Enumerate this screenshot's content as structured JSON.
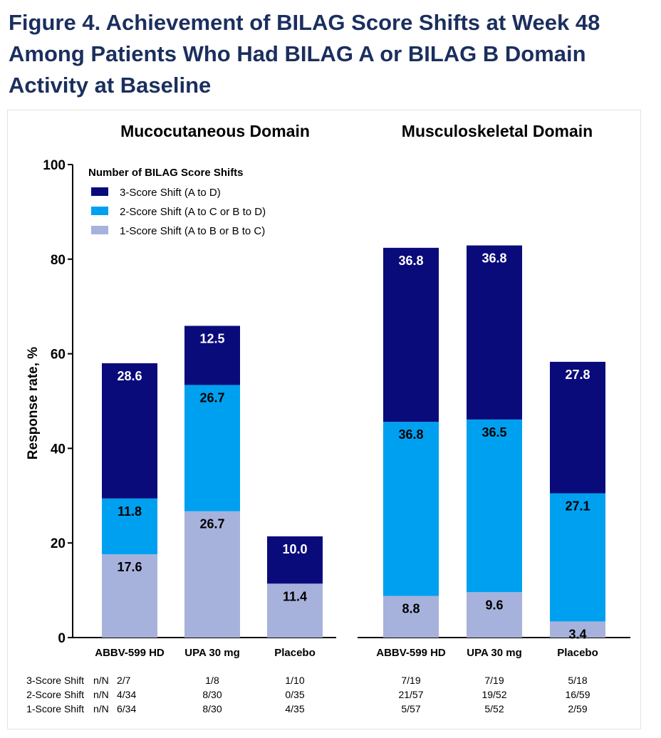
{
  "figure": {
    "title": "Figure 4. Achievement of BILAG Score Shifts at Week 48 Among Patients Who Had BILAG A or BILAG B Domain Activity at Baseline"
  },
  "colors": {
    "three_shift": "#0a0b7a",
    "two_shift": "#00a0f0",
    "one_shift": "#a7b2dc",
    "title": "#1b2f5e",
    "axis": "#000000"
  },
  "chart_data": {
    "type": "bar",
    "stacked": true,
    "ylabel": "Response rate, %",
    "ylim": [
      0,
      100
    ],
    "yticks": [
      0,
      20,
      40,
      60,
      80,
      100
    ],
    "legend": {
      "title": "Number of BILAG Score Shifts",
      "placement": "top-left",
      "entries": [
        {
          "key": "three_shift",
          "label": "3-Score Shift (A to D)"
        },
        {
          "key": "two_shift",
          "label": "2-Score Shift (A to C or B to D)"
        },
        {
          "key": "one_shift",
          "label": "1-Score Shift (A to B or B to C)"
        }
      ]
    },
    "panels": [
      {
        "title": "Mucocutaneous Domain",
        "categories": [
          "ABBV-599 HD",
          "UPA 30 mg",
          "Placebo"
        ],
        "series": [
          {
            "key": "one_shift",
            "name": "1-Score Shift",
            "values": [
              17.6,
              26.7,
              11.4
            ],
            "labels": [
              "17.6",
              "26.7",
              "11.4"
            ]
          },
          {
            "key": "two_shift",
            "name": "2-Score Shift",
            "values": [
              11.8,
              26.7,
              0
            ],
            "labels": [
              "11.8",
              "26.7",
              ""
            ]
          },
          {
            "key": "three_shift",
            "name": "3-Score Shift",
            "values": [
              28.6,
              12.5,
              10.0
            ],
            "labels": [
              "28.6",
              "12.5",
              "10.0"
            ]
          }
        ]
      },
      {
        "title": "Musculoskeletal Domain",
        "categories": [
          "ABBV-599 HD",
          "UPA 30 mg",
          "Placebo"
        ],
        "series": [
          {
            "key": "one_shift",
            "name": "1-Score Shift",
            "values": [
              8.8,
              9.6,
              3.4
            ],
            "labels": [
              "8.8",
              "9.6",
              "3.4"
            ]
          },
          {
            "key": "two_shift",
            "name": "2-Score Shift",
            "values": [
              36.8,
              36.5,
              27.1
            ],
            "labels": [
              "36.8",
              "36.5",
              "27.1"
            ]
          },
          {
            "key": "three_shift",
            "name": "3-Score Shift",
            "values": [
              36.8,
              36.8,
              27.8
            ],
            "labels": [
              "36.8",
              "36.8",
              "27.8"
            ]
          }
        ]
      }
    ],
    "nN_table": {
      "rows": [
        {
          "label": "3-Score Shift",
          "unit": "n/N",
          "values": [
            "2/7",
            "1/8",
            "1/10",
            "7/19",
            "7/19",
            "5/18"
          ]
        },
        {
          "label": "2-Score Shift",
          "unit": "n/N",
          "values": [
            "4/34",
            "8/30",
            "0/35",
            "21/57",
            "19/52",
            "16/59"
          ]
        },
        {
          "label": "1-Score Shift",
          "unit": "n/N",
          "values": [
            "6/34",
            "8/30",
            "4/35",
            "5/57",
            "5/52",
            "2/59"
          ]
        }
      ]
    }
  }
}
